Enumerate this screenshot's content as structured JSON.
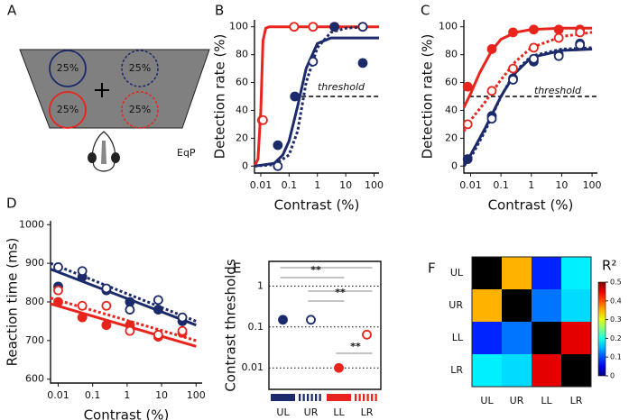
{
  "diagram": {
    "label": "A",
    "targets": [
      "25%",
      "25%",
      "25%",
      "25%"
    ],
    "caption": "EqP"
  },
  "chart_data": [
    {
      "type": "scatter",
      "label": "B",
      "ylabel": "Detection rate (%)",
      "xlabel": "Contrast (%)",
      "xscale": "log",
      "xlim": [
        0.006,
        150
      ],
      "ylim": [
        -5,
        105
      ],
      "xticks": [
        0.01,
        0.1,
        1,
        10,
        100
      ],
      "yticks": [
        0,
        20,
        40,
        60,
        80,
        100
      ],
      "threshold": {
        "label": "threshold",
        "value": 50
      },
      "series": [
        {
          "color": "#e8241c",
          "marker": "filled",
          "x": [
            0.011,
            0.15,
            0.7,
            4,
            40
          ],
          "values": [
            33,
            100,
            100,
            100,
            100
          ]
        },
        {
          "color": "#e8241c",
          "marker": "open",
          "x": [
            0.012,
            0.15,
            0.7,
            4,
            40
          ],
          "values": [
            33,
            100,
            100,
            100,
            100
          ]
        },
        {
          "color": "#1b2a6b",
          "marker": "filled",
          "x": [
            0.04,
            0.16,
            4,
            40
          ],
          "values": [
            15,
            50,
            100,
            74
          ]
        },
        {
          "color": "#1b2a6b",
          "marker": "open",
          "x": [
            0.04,
            0.7,
            40
          ],
          "values": [
            0,
            75,
            100
          ]
        }
      ],
      "fits": [
        {
          "color": "#e8241c",
          "dash": "solid",
          "x": [
            0.006,
            0.008,
            0.01,
            0.012,
            0.015,
            0.02,
            150
          ],
          "values": [
            0,
            5,
            40,
            90,
            99,
            100,
            100
          ]
        },
        {
          "color": "#1b2a6b",
          "dash": "solid",
          "x": [
            0.006,
            0.03,
            0.06,
            0.1,
            0.2,
            0.4,
            1,
            3,
            150
          ],
          "values": [
            0,
            2,
            8,
            18,
            43,
            70,
            88,
            92,
            92
          ]
        },
        {
          "color": "#1b2a6b",
          "dash": "dotted",
          "x": [
            0.006,
            0.03,
            0.1,
            0.2,
            0.4,
            1,
            3,
            10,
            50
          ],
          "values": [
            0,
            1,
            8,
            25,
            60,
            85,
            96,
            99,
            100
          ]
        }
      ]
    },
    {
      "type": "scatter",
      "label": "C",
      "ylabel": "Detection rate (%)",
      "xlabel": "Contrast (%)",
      "xscale": "log",
      "xlim": [
        0.006,
        150
      ],
      "ylim": [
        -5,
        105
      ],
      "xticks": [
        0.01,
        0.1,
        1,
        10,
        100
      ],
      "yticks": [
        0,
        20,
        40,
        60,
        80,
        100
      ],
      "threshold": {
        "label": "threshold",
        "value": 50
      },
      "series": [
        {
          "color": "#e8241c",
          "marker": "filled",
          "x": [
            0.008,
            0.05,
            0.25,
            1.2,
            8,
            40
          ],
          "values": [
            57,
            84,
            96,
            98,
            98,
            98
          ]
        },
        {
          "color": "#e8241c",
          "marker": "open",
          "x": [
            0.008,
            0.05,
            0.25,
            1.2,
            8,
            40
          ],
          "values": [
            30,
            54,
            70,
            85,
            92,
            96
          ]
        },
        {
          "color": "#1b2a6b",
          "marker": "filled",
          "x": [
            0.008,
            0.05,
            0.25,
            1.2,
            8,
            40
          ],
          "values": [
            5,
            36,
            63,
            75,
            80,
            88
          ]
        },
        {
          "color": "#1b2a6b",
          "marker": "open",
          "x": [
            0.05,
            0.25,
            1.2,
            8,
            40
          ],
          "values": [
            34,
            62,
            77,
            79,
            87
          ]
        }
      ],
      "fits": [
        {
          "color": "#e8241c",
          "dash": "solid",
          "x": [
            0.006,
            0.01,
            0.02,
            0.05,
            0.1,
            0.3,
            1,
            10,
            100
          ],
          "values": [
            42,
            52,
            67,
            83,
            91,
            96,
            98,
            99,
            99
          ]
        },
        {
          "color": "#e8241c",
          "dash": "dotted",
          "x": [
            0.006,
            0.01,
            0.03,
            0.1,
            0.3,
            1,
            10,
            100
          ],
          "values": [
            25,
            33,
            46,
            62,
            75,
            85,
            93,
            96
          ]
        },
        {
          "color": "#1b2a6b",
          "dash": "solid",
          "x": [
            0.006,
            0.01,
            0.03,
            0.1,
            0.3,
            1,
            10,
            100
          ],
          "values": [
            0,
            8,
            27,
            50,
            67,
            78,
            83,
            84
          ]
        },
        {
          "color": "#1b2a6b",
          "dash": "dotted",
          "x": [
            0.006,
            0.01,
            0.03,
            0.1,
            0.3,
            1,
            10,
            100
          ],
          "values": [
            0,
            6,
            25,
            50,
            68,
            79,
            84,
            85
          ]
        }
      ]
    },
    {
      "type": "scatter",
      "label": "D",
      "ylabel": "Reaction time (ms)",
      "xlabel": "Contrast (%)",
      "xscale": "log",
      "xlim": [
        0.006,
        150
      ],
      "ylim": [
        590,
        1010
      ],
      "xticks": [
        0.01,
        0.1,
        1,
        10,
        100
      ],
      "yticks": [
        600,
        700,
        800,
        900,
        1000
      ],
      "series": [
        {
          "color": "#1b2a6b",
          "marker": "filled",
          "x": [
            0.01,
            0.05,
            0.25,
            1.2,
            8,
            40
          ],
          "values": [
            840,
            865,
            830,
            800,
            780,
            750
          ]
        },
        {
          "color": "#1b2a6b",
          "marker": "open",
          "x": [
            0.01,
            0.05,
            0.25,
            1.2,
            8,
            40
          ],
          "values": [
            890,
            880,
            835,
            780,
            805,
            760
          ]
        },
        {
          "color": "#e8241c",
          "marker": "filled",
          "x": [
            0.01,
            0.05,
            0.25,
            1.2,
            8,
            40
          ],
          "values": [
            800,
            760,
            740,
            740,
            710,
            720
          ]
        },
        {
          "color": "#e8241c",
          "marker": "open",
          "x": [
            0.01,
            0.05,
            0.25,
            1.2,
            8,
            40
          ],
          "values": [
            830,
            790,
            790,
            725,
            715,
            725
          ]
        }
      ],
      "fits": [
        {
          "color": "#1b2a6b",
          "dash": "solid",
          "x": [
            0.006,
            100
          ],
          "values": [
            885,
            740
          ]
        },
        {
          "color": "#1b2a6b",
          "dash": "dotted",
          "x": [
            0.006,
            100
          ],
          "values": [
            900,
            750
          ]
        },
        {
          "color": "#e8241c",
          "dash": "solid",
          "x": [
            0.006,
            100
          ],
          "values": [
            795,
            685
          ]
        },
        {
          "color": "#e8241c",
          "dash": "dotted",
          "x": [
            0.006,
            100
          ],
          "values": [
            810,
            700
          ]
        }
      ]
    },
    {
      "type": "dot",
      "label": "E",
      "ylabel": "Contrast thresholds",
      "yscale": "log",
      "categories": [
        "UL",
        "UR",
        "LL",
        "LR"
      ],
      "values": [
        0.15,
        0.15,
        0.01,
        0.065
      ],
      "colors": [
        "#1b2a6b",
        "#1b2a6b",
        "#e8241c",
        "#e8241c"
      ],
      "markers": [
        "filled",
        "open",
        "filled",
        "open"
      ],
      "ylim": [
        0.003,
        4
      ],
      "yticks": [
        0.01,
        0.1,
        1
      ],
      "grid": true,
      "significance": [
        "**",
        "**",
        "**"
      ]
    },
    {
      "type": "heatmap",
      "label": "F",
      "categories": [
        "UL",
        "UR",
        "LL",
        "LR"
      ],
      "values": [
        [
          null,
          0.35,
          0.08,
          0.18
        ],
        [
          0.35,
          null,
          0.12,
          0.17
        ],
        [
          0.08,
          0.12,
          null,
          0.45
        ],
        [
          0.18,
          0.17,
          0.45,
          null
        ]
      ],
      "colormap": "jet",
      "clim": [
        0,
        0.5
      ],
      "cticks": [
        0,
        0.1,
        0.2,
        0.3,
        0.4,
        0.5
      ],
      "colorbar_title": "R²"
    }
  ]
}
